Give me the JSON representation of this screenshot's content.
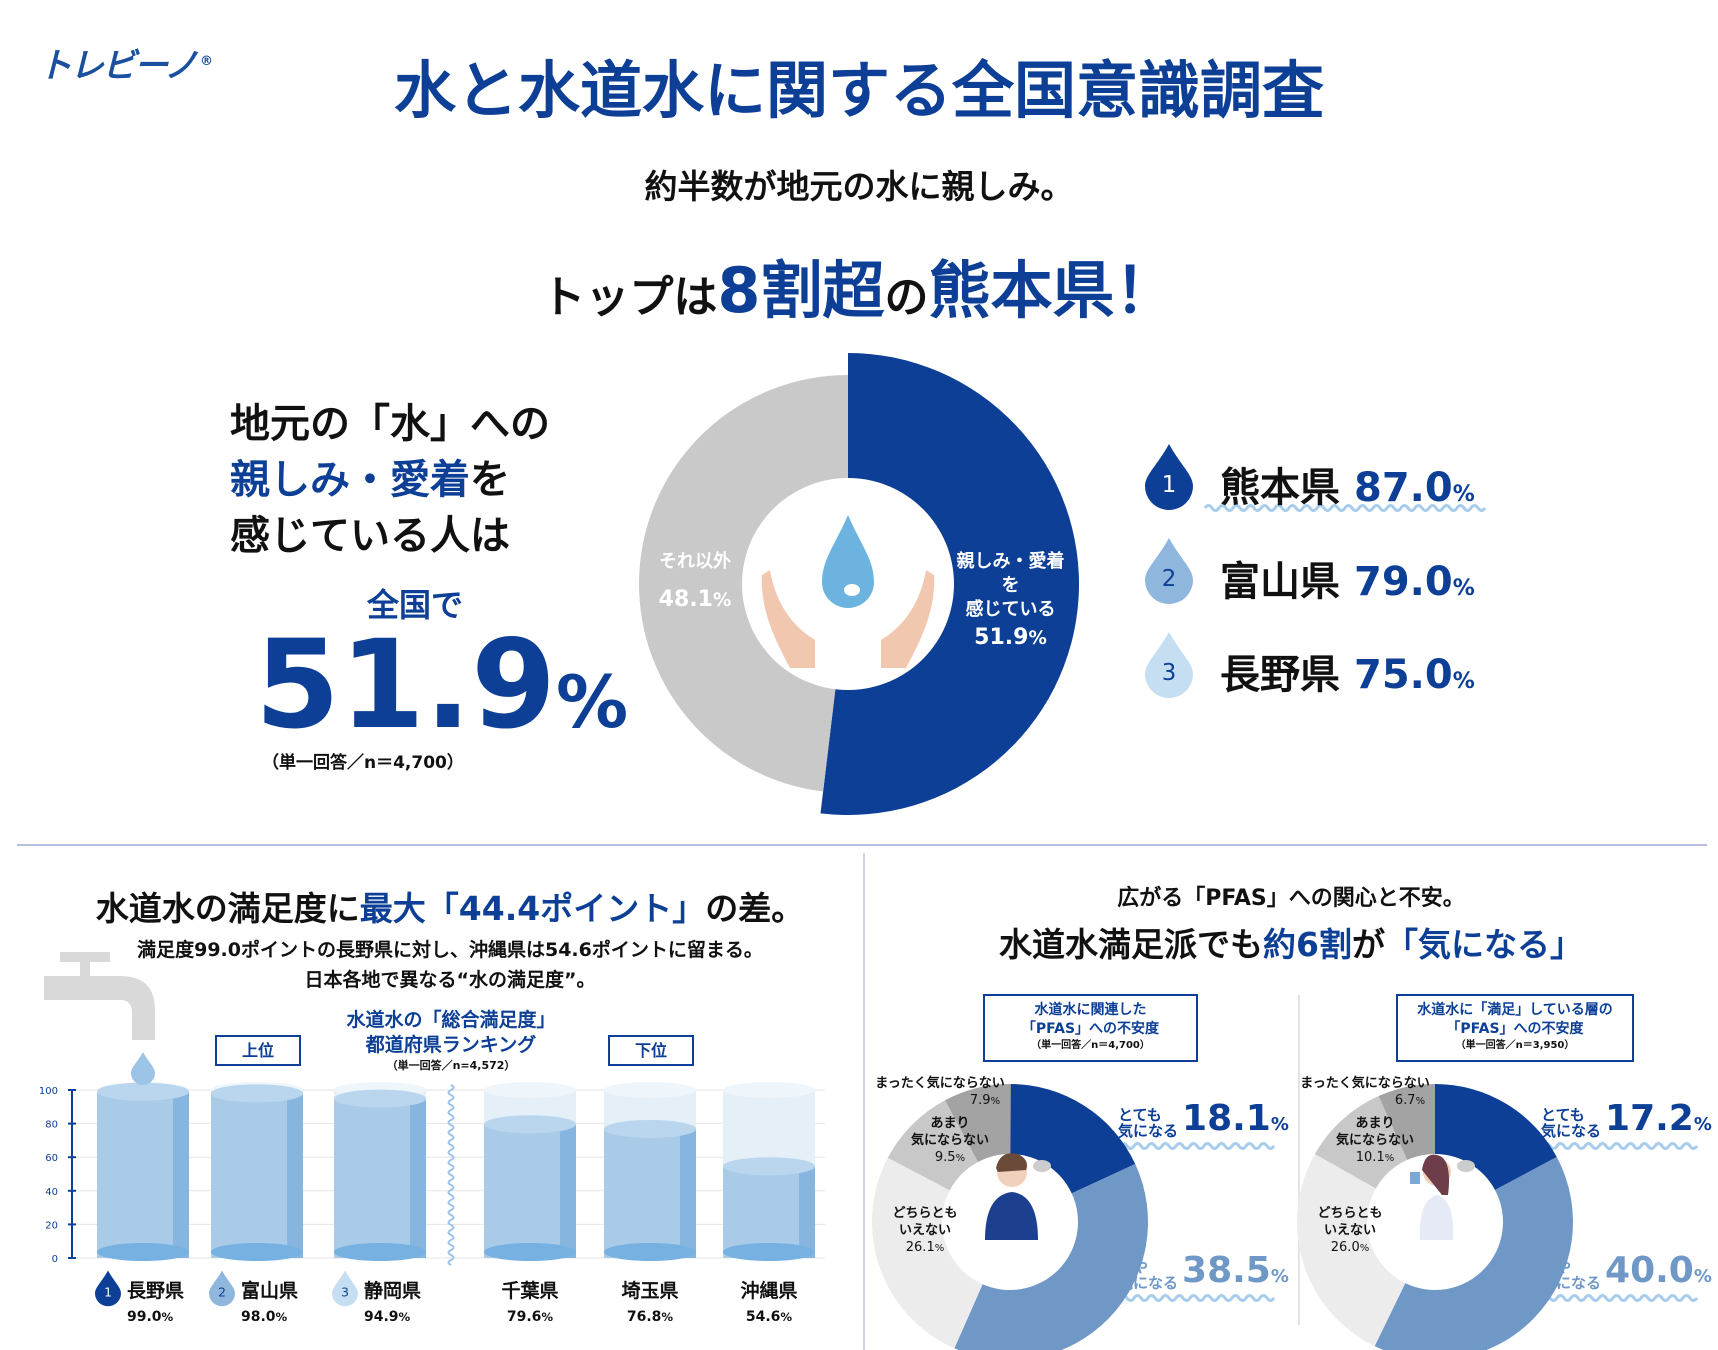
{
  "logo": "トレビーノ",
  "logo_mark": "®",
  "title": "水と水道水に関する全国意識調査",
  "hero": {
    "line1": "約半数が地元の水に親しみ。",
    "line2_a": "トップは",
    "line2_b": "8割超",
    "line2_c": "の",
    "line2_d": "熊本県",
    "line2_e": "！"
  },
  "left": {
    "l1": "地元の「水」への",
    "l2a": "親しみ・愛着",
    "l2b": "を",
    "l3": "感じている人は",
    "l4": "全国で",
    "value": "51.9",
    "pct": "%",
    "note": "（単一回答／n＝4,700）"
  },
  "donut_main": {
    "segments": [
      {
        "label1": "親しみ・愛着を",
        "label2": "感じている",
        "value": 51.9,
        "text": "51.9",
        "color": "#0c3f95"
      },
      {
        "label1": "それ以外",
        "value": 48.1,
        "text": "48.1",
        "color": "#c9c9c9"
      }
    ],
    "unit": "%"
  },
  "top_rank": [
    {
      "rank": "1",
      "pref": "熊本県",
      "value": "87.0",
      "color": "#0c3f95"
    },
    {
      "rank": "2",
      "pref": "富山県",
      "value": "79.0",
      "color": "#8fb6dc"
    },
    {
      "rank": "3",
      "pref": "長野県",
      "value": "75.0",
      "color": "#c6def1"
    }
  ],
  "satisfaction": {
    "title_a": "水道水の満足度に",
    "title_b": "最大「44.4ポイント」",
    "title_c": "の差。",
    "desc1": "満足度99.0ポイントの長野県に対し、沖縄県は54.6ポイントに留まる。",
    "desc2": "日本各地で異なる“水の満足度”。",
    "upper": "上位",
    "lower": "下位",
    "chart_data": {
      "type": "bar",
      "title": "水道水の「総合満足度」都道府県ランキング",
      "title1": "水道水の「総合満足度」",
      "title2": "都道府県ランキング",
      "note": "（単一回答／n=4,572）",
      "ylim": [
        0,
        100
      ],
      "yticks": [
        "0",
        "20",
        "40",
        "60",
        "80",
        "100"
      ],
      "categories": [
        "長野県",
        "富山県",
        "静岡県",
        "千葉県",
        "埼玉県",
        "沖縄県"
      ],
      "ranks": [
        "1",
        "2",
        "3",
        "",
        "",
        ""
      ],
      "values": [
        99.0,
        98.0,
        94.9,
        79.6,
        76.8,
        54.6
      ],
      "labels": [
        "99.0",
        "98.0",
        "94.9",
        "79.6",
        "76.8",
        "54.6"
      ],
      "unit": "%"
    }
  },
  "pfas": {
    "title1": "広がる「PFAS」への関心と不安。",
    "title2a": "水道水満足派でも",
    "title2b": "約6割",
    "title2c": "が",
    "title2d": "「気になる」",
    "charts": [
      {
        "box1": "水道水に関連した",
        "box2": "「PFAS」への不安度",
        "note": "（単一回答／n＝4,700）",
        "type": "pie",
        "segments": [
          {
            "label": "とても気になる",
            "k1": "とても",
            "k2": "気になる",
            "value": 18.1,
            "text": "18.1",
            "color": "#0c3f95"
          },
          {
            "label": "やや気になる",
            "k1": "やや",
            "k2": "気になる",
            "value": 38.5,
            "text": "38.5",
            "color": "#6f98c7"
          },
          {
            "label1": "どちらとも",
            "label2": "いえない",
            "value": 26.1,
            "text": "26.1",
            "color": "#ececec"
          },
          {
            "label1": "あまり",
            "label2": "気にならない",
            "value": 9.5,
            "text": "9.5",
            "color": "#c8c8c8"
          },
          {
            "label1": "まったく気にならない",
            "value": 7.9,
            "text": "7.9",
            "color": "#a3a3a3"
          }
        ]
      },
      {
        "box1": "水道水に「満足」している層の",
        "box2": "「PFAS」への不安度",
        "note": "（単一回答／n＝3,950）",
        "type": "pie",
        "segments": [
          {
            "label": "とても気になる",
            "k1": "とても",
            "k2": "気になる",
            "value": 17.2,
            "text": "17.2",
            "color": "#0c3f95"
          },
          {
            "label": "やや気になる",
            "k1": "やや",
            "k2": "気になる",
            "value": 40.0,
            "text": "40.0",
            "color": "#6f98c7"
          },
          {
            "label1": "どちらとも",
            "label2": "いえない",
            "value": 26.0,
            "text": "26.0",
            "color": "#ececec"
          },
          {
            "label1": "あまり",
            "label2": "気にならない",
            "value": 10.1,
            "text": "10.1",
            "color": "#c8c8c8"
          },
          {
            "label1": "まったく気にならない",
            "value": 6.7,
            "text": "6.7",
            "color": "#a3a3a3"
          }
        ]
      }
    ],
    "unit": "%"
  }
}
